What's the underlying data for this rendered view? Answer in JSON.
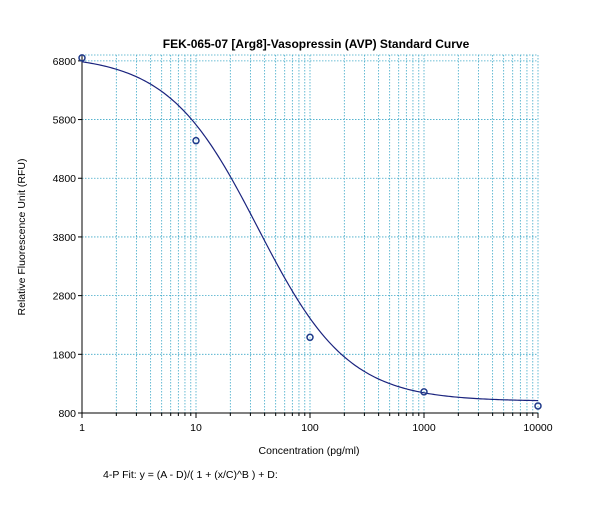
{
  "chart_data": {
    "type": "scatter",
    "title": "FEK-065-07 [Arg8]-Vasopressin (AVP) Standard Curve",
    "xlabel": "Concentration (pg/ml)",
    "ylabel": "Relative Fluorescence Unit (RFU)",
    "x_scale": "log",
    "xlim": [
      1,
      10000
    ],
    "ylim": [
      800,
      6900
    ],
    "x_ticks": [
      1,
      10,
      100,
      1000,
      10000
    ],
    "x_tick_labels": [
      "1",
      "10",
      "100",
      "1000",
      "10000"
    ],
    "y_ticks": [
      800,
      1800,
      2800,
      3800,
      4800,
      5800,
      6800
    ],
    "y_tick_labels": [
      "800",
      "1800",
      "2800",
      "3800",
      "4800",
      "5800",
      "6800"
    ],
    "grid": true,
    "colors": {
      "points": "#1f3a8a",
      "fit_line": "#1a237e",
      "grid": "#3fa9c8",
      "axes": "#000000"
    },
    "series": [
      {
        "points": [
          {
            "x": 1,
            "y": 6850
          },
          {
            "x": 10,
            "y": 5440
          },
          {
            "x": 100,
            "y": 2090
          },
          {
            "x": 1000,
            "y": 1160
          },
          {
            "x": 10000,
            "y": 920
          }
        ]
      }
    ],
    "fit": {
      "model": "4-parameter logistic",
      "params": {
        "A": 6900,
        "B": 1.1,
        "C": 35,
        "D": 1000
      }
    },
    "fit_note": "4-P Fit:  y = (A - D)/( 1 + (x/C)^B ) + D:"
  }
}
